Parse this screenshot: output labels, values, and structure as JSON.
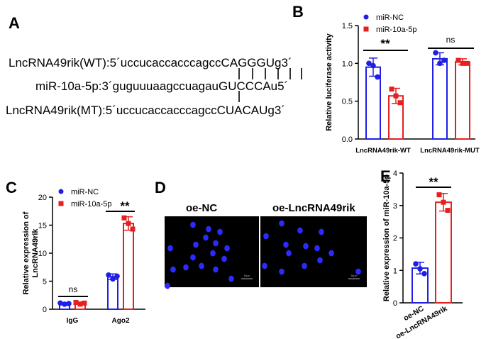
{
  "panel_labels": {
    "a": "A",
    "b": "B",
    "c": "C",
    "d": "D",
    "e": "E"
  },
  "panel_a": {
    "seq_wt": "LncRNA49rik(WT):5´uccucaccacccagccCAGGGUg3´",
    "seq_mir": "miR-10a-5p:3´guguuuaagccuagauGUCCCAu5´",
    "seq_mt": "LncRNA49rik(MT):5´uccucaccacccagccCUACAUg3´"
  },
  "colors": {
    "nc": "#1f1fe6",
    "mir": "#e61f1f",
    "dot_mir": "#e61f1f",
    "dot_nc": "#1f1fe6"
  },
  "chart_data": [
    {
      "id": "B",
      "type": "bar",
      "ylabel": "Relative luciferase activity",
      "ylim": [
        0,
        1.5
      ],
      "yticks": [
        "0.0",
        "0.5",
        "1.0",
        "1.5"
      ],
      "categories": [
        "LncRNA49rik-WT",
        "LncRNA49rik-MUT"
      ],
      "series": [
        {
          "name": "miR-NC",
          "values": [
            0.95,
            1.06
          ],
          "err": [
            0.12,
            0.08
          ],
          "points": [
            [
              1.0,
              0.97,
              0.82
            ],
            [
              1.14,
              1.0,
              1.04
            ]
          ]
        },
        {
          "name": "miR-10a-5p",
          "values": [
            0.57,
            1.02
          ],
          "err": [
            0.1,
            0.04
          ],
          "points": [
            [
              0.66,
              0.57,
              0.48
            ],
            [
              1.04,
              1.0,
              1.0
            ]
          ]
        }
      ],
      "annotations": [
        "**",
        "ns"
      ],
      "legend": "top-left"
    },
    {
      "id": "C",
      "type": "bar",
      "ylabel": "Relative expression of LncRNA49rik",
      "ylim": [
        0,
        20
      ],
      "yticks": [
        "0",
        "5",
        "10",
        "15",
        "20"
      ],
      "categories": [
        "IgG",
        "Ago2"
      ],
      "series": [
        {
          "name": "miR-NC",
          "values": [
            1.0,
            5.8
          ],
          "err": [
            0.2,
            0.5
          ],
          "points": [
            [
              1.1,
              0.9,
              1.0
            ],
            [
              6.1,
              5.4,
              5.9
            ]
          ]
        },
        {
          "name": "miR-10a-5p",
          "values": [
            1.1,
            15.3
          ],
          "err": [
            0.2,
            1.2
          ],
          "points": [
            [
              1.2,
              0.9,
              1.1
            ],
            [
              16.3,
              15.3,
              14.3
            ]
          ]
        }
      ],
      "annotations": [
        "ns",
        "**"
      ],
      "legend": "top-left"
    },
    {
      "id": "E",
      "type": "bar",
      "ylabel": "Relative expression of miR-10a-5p",
      "ylim": [
        0,
        4
      ],
      "yticks": [
        "0",
        "1",
        "2",
        "3",
        "4"
      ],
      "categories": [
        "oe-NC",
        "oe-LncRNA49rik"
      ],
      "values": [
        1.07,
        3.1
      ],
      "err": [
        0.18,
        0.27
      ],
      "points": [
        [
          1.2,
          1.05,
          0.9
        ],
        [
          3.33,
          3.1,
          2.85
        ]
      ],
      "annotations": [
        "**"
      ]
    }
  ],
  "panel_d": {
    "titles": [
      "oe-NC",
      "oe-LncRNA49rik"
    ],
    "scale_label": "50μm"
  }
}
